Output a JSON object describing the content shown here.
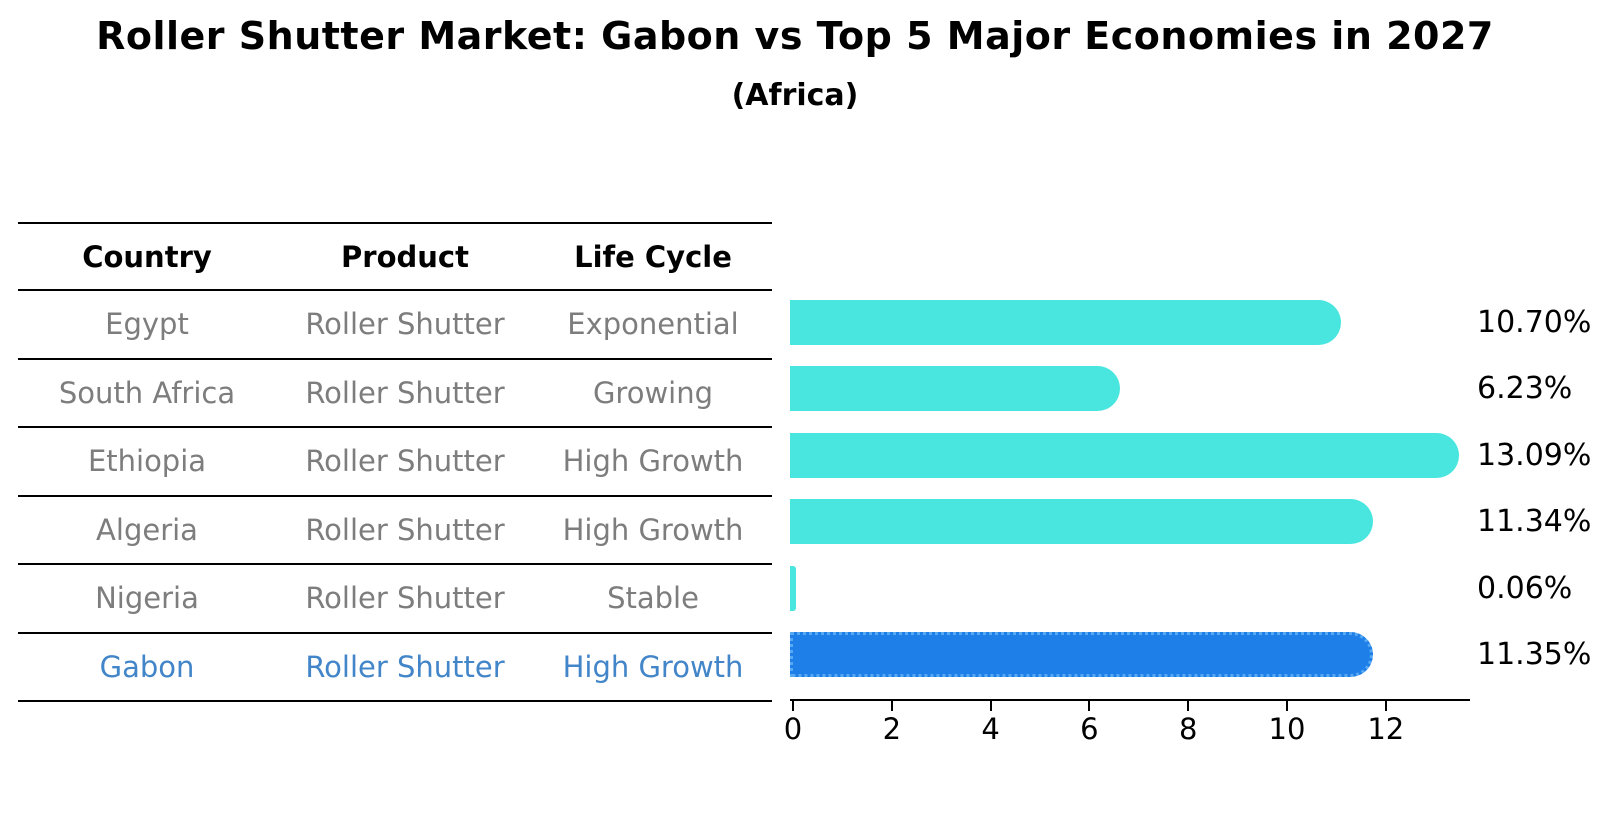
{
  "title": "Roller Shutter Market: Gabon vs Top 5 Major Economies in 2027",
  "subtitle": "(Africa)",
  "table": {
    "headers": [
      "Country",
      "Product",
      "Life Cycle"
    ],
    "rows": [
      {
        "country": "Egypt",
        "product": "Roller Shutter",
        "life_cycle": "Exponential",
        "highlight": false
      },
      {
        "country": "South Africa",
        "product": "Roller Shutter",
        "life_cycle": "Growing",
        "highlight": false
      },
      {
        "country": "Ethiopia",
        "product": "Roller Shutter",
        "life_cycle": "High Growth",
        "highlight": false
      },
      {
        "country": "Algeria",
        "product": "Roller Shutter",
        "life_cycle": "High Growth",
        "highlight": false
      },
      {
        "country": "Nigeria",
        "product": "Roller Shutter",
        "life_cycle": "Stable",
        "highlight": false
      },
      {
        "country": "Gabon",
        "product": "Roller Shutter",
        "life_cycle": "High Growth",
        "highlight": true
      }
    ]
  },
  "chart_data": {
    "type": "bar",
    "orientation": "horizontal",
    "title": "Roller Shutter Market: Gabon vs Top 5 Major Economies in 2027",
    "subtitle": "(Africa)",
    "categories": [
      "Egypt",
      "South Africa",
      "Ethiopia",
      "Algeria",
      "Nigeria",
      "Gabon"
    ],
    "values": [
      10.7,
      6.23,
      13.09,
      11.34,
      0.06,
      11.35
    ],
    "labels": [
      "10.70%",
      "6.23%",
      "13.09%",
      "11.34%",
      "0.06%",
      "11.35%"
    ],
    "x_ticks": [
      "0",
      "2",
      "4",
      "6",
      "8",
      "10",
      "12"
    ],
    "x_tick_values": [
      0,
      2,
      4,
      6,
      8,
      10,
      12
    ],
    "xlim": [
      0,
      13.75
    ],
    "grid": false,
    "legend": false,
    "highlight_index": 5
  },
  "colors": {
    "bar": "#49E6E0",
    "highlight_bar": "#1E7FE8",
    "highlight_border": "#57A9F2",
    "highlight_text": "#4285C8",
    "row_text": "#7d7d7d",
    "header_text": "#000000"
  }
}
